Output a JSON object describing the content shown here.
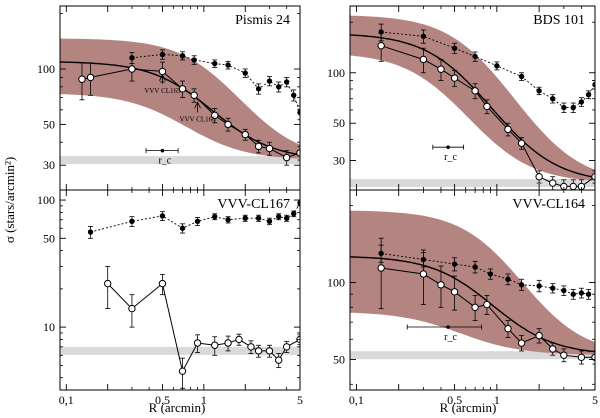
{
  "figure": {
    "ylabel": "σ (stars/arcmin²)",
    "xlabel": "R (arcmin)"
  },
  "chart_data": [
    {
      "type": "line",
      "title": "Pismis 24",
      "xscale": "log",
      "yscale": "log",
      "xlim": [
        0.09,
        5
      ],
      "ylim": [
        22,
        220
      ],
      "xticks": [
        "",
        "",
        "0.5",
        "1",
        "",
        "5"
      ],
      "yticks": [
        "30",
        "50",
        "100"
      ],
      "background": 32,
      "profile": {
        "sigma_bg": 32,
        "sigma_0": 78,
        "r_c": 0.85
      },
      "band": {
        "lower": {
          "sigma_0": 42,
          "r_c": 0.6
        },
        "upper": {
          "sigma_0": 115,
          "r_c": 1.25
        }
      },
      "rc_marker": {
        "x": 0.5,
        "y": 36,
        "xerr": [
          0.38,
          0.65
        ],
        "label": "r_c"
      },
      "annotations": [
        {
          "text": "VVV CL165",
          "x": 0.5,
          "y": 83,
          "tip": 93
        },
        {
          "text": "VVV CL166",
          "x": 0.9,
          "y": 58,
          "tip": 66
        }
      ],
      "series": [
        {
          "style": "open",
          "x": [
            0.13,
            0.15,
            0.3,
            0.5,
            0.7,
            0.85,
            1.2,
            1.5,
            2.0,
            2.5,
            3.0,
            4.0,
            5.0
          ],
          "y": [
            88,
            90,
            100,
            97,
            78,
            72,
            56,
            50,
            44,
            38,
            37,
            33,
            35
          ],
          "yerr": [
            20,
            18,
            14,
            12,
            8,
            6,
            5,
            4,
            3,
            3,
            3,
            3,
            3
          ]
        },
        {
          "style": "filled",
          "x": [
            0.3,
            0.5,
            0.7,
            0.85,
            1.2,
            1.5,
            2.0,
            2.5,
            3.0,
            3.5,
            4.0,
            4.5,
            5.0
          ],
          "y": [
            115,
            120,
            118,
            112,
            107,
            105,
            95,
            78,
            86,
            80,
            85,
            72,
            58
          ],
          "yerr": [
            8,
            7,
            6,
            6,
            5,
            5,
            5,
            5,
            5,
            5,
            5,
            5,
            5
          ]
        }
      ]
    },
    {
      "type": "line",
      "title": "BDS 101",
      "xscale": "log",
      "yscale": "log",
      "xlim": [
        0.09,
        5
      ],
      "ylim": [
        20,
        250
      ],
      "xticks": [
        "",
        "",
        "0.5",
        "1",
        "",
        "5"
      ],
      "yticks": [
        "30",
        "50",
        "100"
      ],
      "background": 22,
      "profile": {
        "sigma_bg": 22,
        "sigma_0": 150,
        "r_c": 0.55
      },
      "band": {
        "lower": {
          "sigma_0": 110,
          "r_c": 0.4
        },
        "upper": {
          "sigma_0": 200,
          "r_c": 0.75
        }
      },
      "rc_marker": {
        "x": 0.45,
        "y": 36,
        "xerr": [
          0.35,
          0.58
        ],
        "label": "r_c"
      },
      "series": [
        {
          "style": "open",
          "x": [
            0.15,
            0.3,
            0.4,
            0.5,
            0.7,
            0.85,
            1.2,
            1.5,
            2.0,
            2.5,
            3.0,
            3.5,
            4.0,
            5.0
          ],
          "y": [
            145,
            120,
            105,
            93,
            78,
            63,
            46,
            38,
            24,
            22,
            21,
            21,
            21,
            24
          ],
          "yerr": [
            28,
            20,
            15,
            10,
            8,
            6,
            4,
            3,
            2,
            2,
            2,
            2,
            2,
            2
          ]
        },
        {
          "style": "filled",
          "x": [
            0.15,
            0.3,
            0.5,
            0.7,
            1.0,
            1.5,
            2.0,
            2.5,
            3.0,
            3.5,
            4.0,
            4.5,
            5.0
          ],
          "y": [
            175,
            165,
            140,
            125,
            110,
            95,
            78,
            70,
            62,
            62,
            67,
            74,
            85
          ],
          "yerr": [
            20,
            15,
            10,
            8,
            6,
            5,
            4,
            4,
            4,
            4,
            4,
            4,
            5
          ]
        }
      ]
    },
    {
      "type": "line",
      "title": "VVV-CL167",
      "xscale": "log",
      "yscale": "log",
      "xlim": [
        0.09,
        5
      ],
      "ylim": [
        3.2,
        120
      ],
      "xticks": [
        "0,1",
        "",
        "0.5",
        "1",
        "",
        "5"
      ],
      "yticks": [
        "10",
        "50",
        "100"
      ],
      "background": 6.5,
      "series": [
        {
          "style": "open",
          "x": [
            0.2,
            0.3,
            0.5,
            0.7,
            0.9,
            1.2,
            1.5,
            1.8,
            2.2,
            2.5,
            3.0,
            3.5,
            4.0,
            5.0
          ],
          "y": [
            22,
            14,
            22,
            4.5,
            7.5,
            7.2,
            7.5,
            8,
            7,
            6.5,
            6.5,
            5.5,
            7,
            8
          ],
          "yerr": [
            8,
            4,
            4,
            1.2,
            1.2,
            1.2,
            1,
            0.8,
            0.8,
            0.7,
            0.7,
            0.7,
            0.7,
            0.7
          ]
        },
        {
          "style": "filled",
          "x": [
            0.15,
            0.3,
            0.5,
            0.7,
            0.9,
            1.2,
            1.5,
            2.0,
            2.5,
            3.0,
            3.5,
            4.0,
            4.5,
            5.0
          ],
          "y": [
            56,
            68,
            75,
            60,
            68,
            74,
            70,
            72,
            72,
            68,
            74,
            72,
            78,
            95
          ],
          "yerr": [
            6,
            6,
            6,
            5,
            5,
            4,
            4,
            4,
            4,
            4,
            4,
            4,
            4,
            5
          ]
        }
      ]
    },
    {
      "type": "line",
      "title": "VVV-CL164",
      "xscale": "log",
      "yscale": "log",
      "xlim": [
        0.09,
        5
      ],
      "ylim": [
        38,
        230
      ],
      "xticks": [
        "0,1",
        "",
        "0.5",
        "1",
        "",
        "5"
      ],
      "yticks": [
        "50",
        "100"
      ],
      "background": 52,
      "profile": {
        "sigma_bg": 52,
        "sigma_0": 75,
        "r_c": 0.75
      },
      "band": {
        "lower": {
          "sigma_0": 25,
          "r_c": 0.5
        },
        "upper": {
          "sigma_0": 140,
          "r_c": 1.1
        }
      },
      "rc_marker": {
        "x": 0.45,
        "y": 67,
        "xerr": [
          0.23,
          0.78
        ],
        "label": "r_c"
      },
      "series": [
        {
          "style": "open",
          "x": [
            0.15,
            0.3,
            0.4,
            0.5,
            0.7,
            0.85,
            1.2,
            1.5,
            2.0,
            2.5,
            3.0,
            4.0,
            5.0
          ],
          "y": [
            114,
            108,
            98,
            92,
            80,
            82,
            66,
            58,
            62,
            55,
            52,
            51,
            51
          ],
          "yerr": [
            35,
            26,
            18,
            14,
            9,
            7,
            5,
            4,
            4,
            3,
            3,
            3,
            3
          ]
        },
        {
          "style": "filled",
          "x": [
            0.15,
            0.3,
            0.5,
            0.7,
            0.9,
            1.2,
            1.5,
            2.0,
            2.5,
            3.0,
            3.5,
            4.0,
            4.5
          ],
          "y": [
            130,
            123,
            118,
            115,
            108,
            103,
            98,
            97,
            95,
            93,
            90,
            91,
            90
          ],
          "yerr": [
            10,
            8,
            7,
            6,
            5,
            5,
            5,
            5,
            4,
            4,
            4,
            4,
            4
          ]
        }
      ]
    }
  ]
}
